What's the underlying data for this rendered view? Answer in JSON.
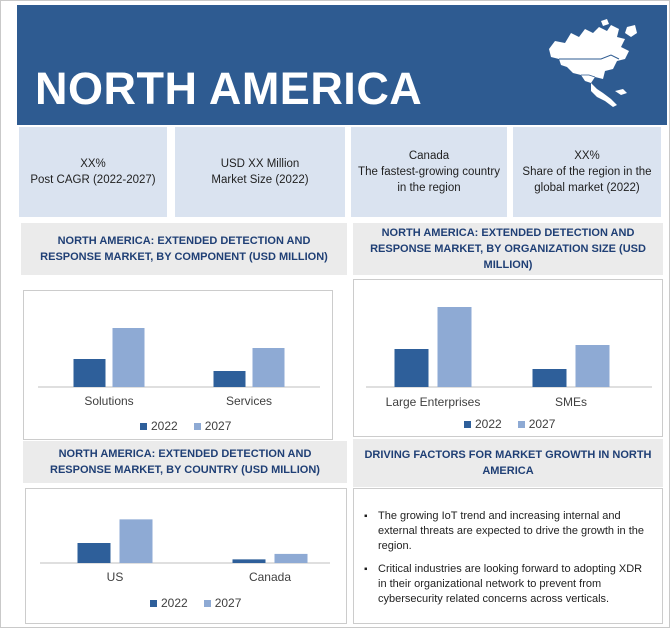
{
  "header": {
    "title": "NORTH AMERICA"
  },
  "stats": [
    {
      "line1": "XX%",
      "line2": "Post CAGR (2022-2027)"
    },
    {
      "line1": "USD XX Million",
      "line2": "Market Size (2022)"
    },
    {
      "line1": "Canada",
      "line2": "The fastest-growing country in the region"
    },
    {
      "line1": "XX%",
      "line2": "Share of the region in the global market (2022)"
    }
  ],
  "sections": {
    "component": "NORTH AMERICA: EXTENDED DETECTION AND RESPONSE MARKET, BY COMPONENT (USD MILLION)",
    "organization": "NORTH AMERICA: EXTENDED DETECTION AND RESPONSE MARKET, BY ORGANIZATION SIZE (USD MILLION)",
    "country": "NORTH AMERICA: EXTENDED DETECTION AND RESPONSE MARKET, BY COUNTRY (USD MILLION)",
    "drivers": "DRIVING FACTORS FOR MARKET GROWTH IN NORTH AMERICA"
  },
  "drivers": [
    "The growing IoT trend and increasing internal and external threats are expected to drive the growth in the region.",
    "Critical industries are looking forward to adopting XDR in their organizational network to prevent from cybersecurity related concerns across verticals."
  ],
  "colors": {
    "header": "#2e5b91",
    "series2022": "#2e5f9a",
    "series2027": "#8eaad4"
  },
  "chart_data": [
    {
      "type": "bar",
      "title": "NORTH AMERICA: EXTENDED DETECTION AND RESPONSE MARKET, BY COMPONENT (USD MILLION)",
      "categories": [
        "Solutions",
        "Services"
      ],
      "series": [
        {
          "name": "2022",
          "values": [
            28,
            16
          ]
        },
        {
          "name": "2027",
          "values": [
            59,
            39
          ]
        }
      ],
      "ylim": [
        0,
        70
      ],
      "legend": "bottom",
      "grid": false
    },
    {
      "type": "bar",
      "title": "NORTH AMERICA: EXTENDED DETECTION AND RESPONSE MARKET, BY ORGANIZATION SIZE (USD MILLION)",
      "categories": [
        "Large Enterprises",
        "SMEs"
      ],
      "series": [
        {
          "name": "2022",
          "values": [
            38,
            18
          ]
        },
        {
          "name": "2027",
          "values": [
            80,
            42
          ]
        }
      ],
      "ylim": [
        0,
        90
      ],
      "legend": "bottom",
      "grid": false
    },
    {
      "type": "bar",
      "title": "NORTH AMERICA: EXTENDED DETECTION AND RESPONSE MARKET, BY COUNTRY (USD MILLION)",
      "categories": [
        "US",
        "Canada"
      ],
      "series": [
        {
          "name": "2022",
          "values": [
            22,
            4
          ]
        },
        {
          "name": "2027",
          "values": [
            48,
            10
          ]
        }
      ],
      "ylim": [
        0,
        55
      ],
      "legend": "bottom",
      "grid": false
    }
  ]
}
